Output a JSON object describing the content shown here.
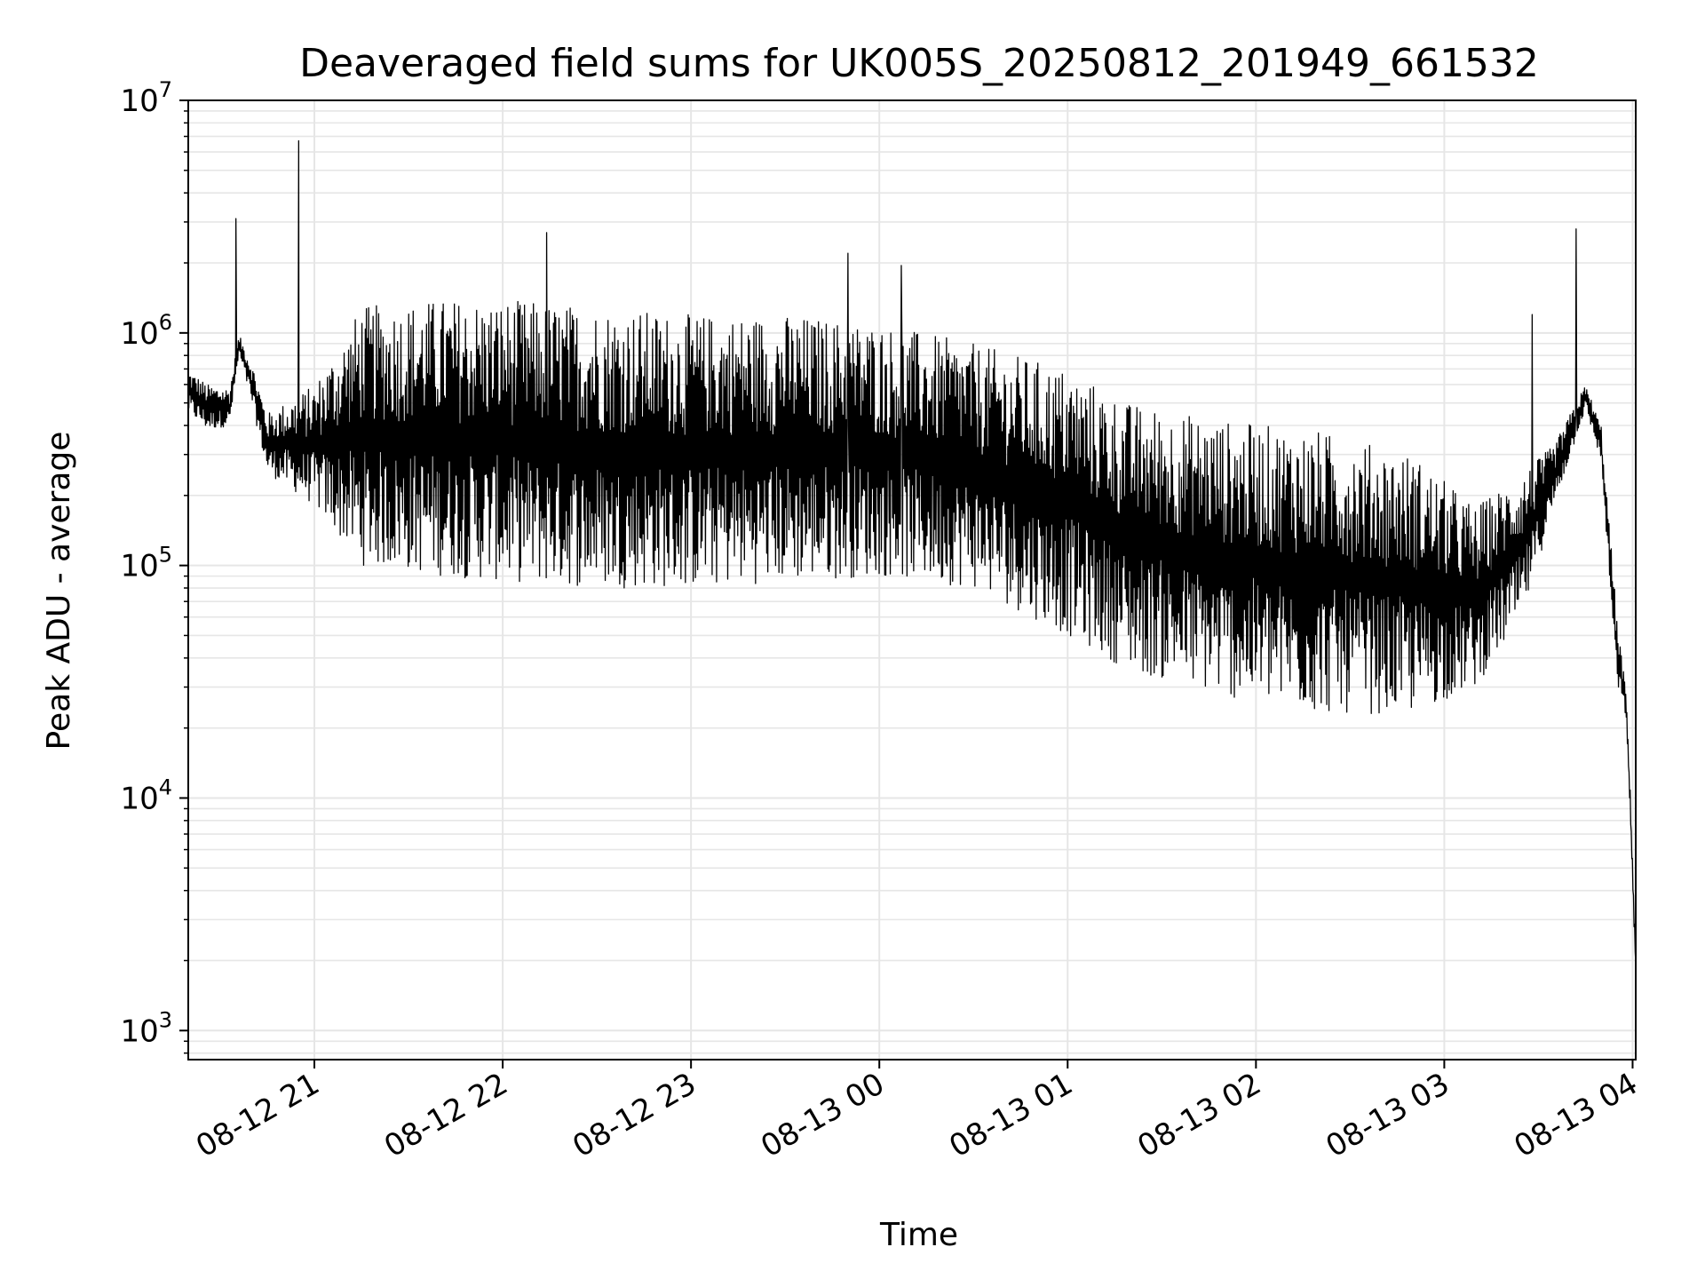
{
  "chart_data": {
    "type": "line",
    "title": "Deaveraged field sums for UK005S_20250812_201949_661532",
    "xlabel": "Time",
    "ylabel": "Peak ADU - average",
    "yscale": "log",
    "ylim": [
      750,
      10000000
    ],
    "xlim": [
      "2025-08-12 20:19:49",
      "2025-08-13 04:01:00"
    ],
    "grid": true,
    "line_color": "#000000",
    "grid_color": "#e6e6e6",
    "x_ticks": [
      {
        "time": "2025-08-12 21:00",
        "label": "08-12 21"
      },
      {
        "time": "2025-08-12 22:00",
        "label": "08-12 22"
      },
      {
        "time": "2025-08-12 23:00",
        "label": "08-12 23"
      },
      {
        "time": "2025-08-13 00:00",
        "label": "08-13 00"
      },
      {
        "time": "2025-08-13 01:00",
        "label": "08-13 01"
      },
      {
        "time": "2025-08-13 02:00",
        "label": "08-13 02"
      },
      {
        "time": "2025-08-13 03:00",
        "label": "08-13 03"
      },
      {
        "time": "2025-08-13 04:00",
        "label": "08-13 04"
      }
    ],
    "y_ticks": [
      {
        "value": 1000,
        "base": "10",
        "exp": "3"
      },
      {
        "value": 10000,
        "base": "10",
        "exp": "4"
      },
      {
        "value": 100000,
        "base": "10",
        "exp": "5"
      },
      {
        "value": 1000000,
        "base": "10",
        "exp": "6"
      },
      {
        "value": 10000000,
        "base": "10",
        "exp": "7"
      }
    ],
    "series": [
      {
        "envelope": [
          {
            "t": "2025-08-12 20:19:49",
            "low": 450000,
            "high": 700000
          },
          {
            "t": "2025-08-12 20:26",
            "low": 380000,
            "high": 600000
          },
          {
            "t": "2025-08-12 20:33",
            "low": 400000,
            "high": 580000
          },
          {
            "t": "2025-08-12 20:36",
            "low": 800000,
            "high": 980000
          },
          {
            "t": "2025-08-12 20:40",
            "low": 500000,
            "high": 750000
          },
          {
            "t": "2025-08-12 20:45",
            "low": 250000,
            "high": 450000
          },
          {
            "t": "2025-08-12 21:00",
            "low": 180000,
            "high": 600000
          },
          {
            "t": "2025-08-12 21:15",
            "low": 100000,
            "high": 1300000
          },
          {
            "t": "2025-08-12 21:40",
            "low": 90000,
            "high": 1400000
          },
          {
            "t": "2025-08-12 22:00",
            "low": 85000,
            "high": 1400000
          },
          {
            "t": "2025-08-12 22:30",
            "low": 80000,
            "high": 1300000
          },
          {
            "t": "2025-08-12 23:00",
            "low": 80000,
            "high": 1200000
          },
          {
            "t": "2025-08-12 23:30",
            "low": 85000,
            "high": 1200000
          },
          {
            "t": "2025-08-13 00:00",
            "low": 90000,
            "high": 1100000
          },
          {
            "t": "2025-08-13 00:30",
            "low": 80000,
            "high": 900000
          },
          {
            "t": "2025-08-13 01:00",
            "low": 50000,
            "high": 700000
          },
          {
            "t": "2025-08-13 01:20",
            "low": 35000,
            "high": 500000
          },
          {
            "t": "2025-08-13 01:50",
            "low": 27000,
            "high": 420000
          },
          {
            "t": "2025-08-13 02:20",
            "low": 23000,
            "high": 380000
          },
          {
            "t": "2025-08-13 02:50",
            "low": 23000,
            "high": 300000
          },
          {
            "t": "2025-08-13 03:10",
            "low": 30000,
            "high": 180000
          },
          {
            "t": "2025-08-13 03:25",
            "low": 60000,
            "high": 250000
          },
          {
            "t": "2025-08-13 03:35",
            "low": 180000,
            "high": 330000
          },
          {
            "t": "2025-08-13 03:45",
            "low": 470000,
            "high": 600000
          },
          {
            "t": "2025-08-13 03:50",
            "low": 280000,
            "high": 400000
          },
          {
            "t": "2025-08-13 03:55",
            "low": 30000,
            "high": 60000
          },
          {
            "t": "2025-08-13 03:58",
            "low": 22000,
            "high": 28000
          },
          {
            "t": "2025-08-13 04:00",
            "low": 4000,
            "high": 6000
          },
          {
            "t": "2025-08-13 04:01",
            "low": 1800,
            "high": 2000
          }
        ],
        "spikes": [
          {
            "t": "2025-08-12 20:35",
            "value": 3100000
          },
          {
            "t": "2025-08-12 20:55",
            "value": 6700000
          },
          {
            "t": "2025-08-12 22:14",
            "value": 2700000
          },
          {
            "t": "2025-08-12 23:50",
            "value": 2200000
          },
          {
            "t": "2025-08-13 00:07",
            "value": 1950000
          },
          {
            "t": "2025-08-13 03:28",
            "value": 1200000
          },
          {
            "t": "2025-08-13 03:42",
            "value": 2800000
          }
        ]
      }
    ]
  }
}
